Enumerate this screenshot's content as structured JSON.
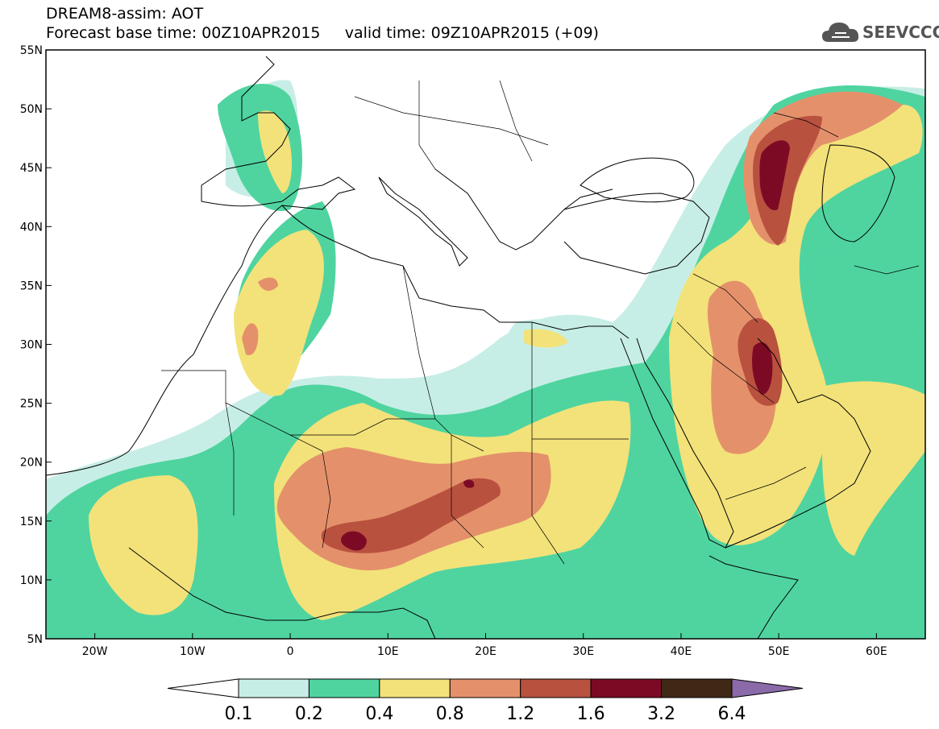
{
  "header": {
    "line1": "DREAM8-assim: AOT",
    "line2": "Forecast base time: 00Z10APR2015     valid time: 09Z10APR2015 (+09)",
    "logo_text": "SEEVCCC"
  },
  "map": {
    "lon_range": [
      -25,
      65
    ],
    "lat_range": [
      5,
      55
    ],
    "x_ticks": [
      {
        "lon": -20,
        "label": "20W"
      },
      {
        "lon": -10,
        "label": "10W"
      },
      {
        "lon": 0,
        "label": "0"
      },
      {
        "lon": 10,
        "label": "10E"
      },
      {
        "lon": 20,
        "label": "20E"
      },
      {
        "lon": 30,
        "label": "30E"
      },
      {
        "lon": 40,
        "label": "40E"
      },
      {
        "lon": 50,
        "label": "50E"
      },
      {
        "lon": 60,
        "label": "60E"
      }
    ],
    "y_ticks": [
      {
        "lat": 55,
        "label": "55N"
      },
      {
        "lat": 50,
        "label": "50N"
      },
      {
        "lat": 45,
        "label": "45N"
      },
      {
        "lat": 40,
        "label": "40N"
      },
      {
        "lat": 35,
        "label": "35N"
      },
      {
        "lat": 30,
        "label": "30N"
      },
      {
        "lat": 25,
        "label": "25N"
      },
      {
        "lat": 20,
        "label": "20N"
      },
      {
        "lat": 15,
        "label": "15N"
      },
      {
        "lat": 10,
        "label": "10N"
      },
      {
        "lat": 5,
        "label": "5N"
      }
    ]
  },
  "colorbar": {
    "colors": [
      "#ffffff",
      "#c7eee6",
      "#4fd4a0",
      "#f3e27a",
      "#e4916b",
      "#b9513f",
      "#7d0a25",
      "#3f2916",
      "#8a6aa8"
    ],
    "labels": [
      "0.1",
      "0.2",
      "0.4",
      "0.8",
      "1.2",
      "1.6",
      "3.2",
      "6.4"
    ]
  }
}
